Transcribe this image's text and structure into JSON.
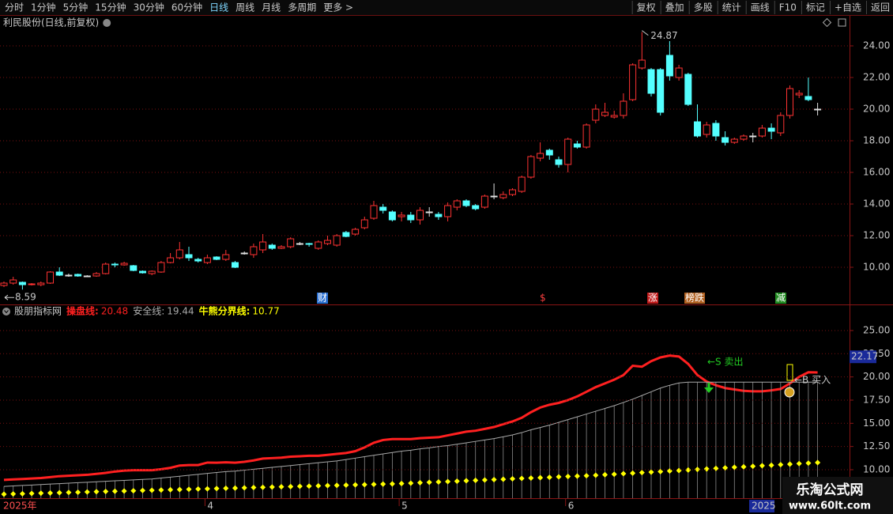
{
  "toolbar": {
    "left": [
      "分时",
      "1分钟",
      "5分钟",
      "15分钟",
      "30分钟",
      "60分钟",
      "日线",
      "周线",
      "月线",
      "多周期",
      "更多 >"
    ],
    "right": [
      "复权",
      "叠加",
      "多股",
      "统计",
      "画线",
      "F10",
      "标记",
      "+自选",
      "返回"
    ]
  },
  "chart_data": [
    {
      "type": "candlestick",
      "title": "利民股份(日线,前复权)",
      "categories": [
        "2025年",
        null,
        null,
        null,
        null,
        null,
        null,
        null,
        null,
        null,
        null,
        null,
        null,
        null,
        null,
        null,
        null,
        null,
        null,
        null,
        null,
        null,
        "4",
        null,
        null,
        null,
        null,
        null,
        null,
        null,
        null,
        null,
        null,
        null,
        null,
        null,
        null,
        null,
        null,
        null,
        null,
        null,
        null,
        "5",
        null,
        null,
        null,
        null,
        null,
        null,
        null,
        null,
        null,
        null,
        null,
        null,
        null,
        null,
        null,
        null,
        null,
        "6",
        null,
        null,
        null,
        null,
        null,
        null,
        null,
        null,
        null,
        null,
        null,
        null,
        null,
        null,
        null,
        null,
        null,
        null,
        null,
        null,
        null,
        null,
        null,
        null,
        null,
        null,
        null
      ],
      "open": [
        8.85,
        9.0,
        9.05,
        8.9,
        8.9,
        9.0,
        9.7,
        9.5,
        9.55,
        9.45,
        9.45,
        9.6,
        10.2,
        10.15,
        10.1,
        9.75,
        9.6,
        9.7,
        10.3,
        10.6,
        10.8,
        10.5,
        10.3,
        10.65,
        10.5,
        10.3,
        10.9,
        10.8,
        11.1,
        11.4,
        11.2,
        11.3,
        11.5,
        11.5,
        11.2,
        11.5,
        11.4,
        12.2,
        12.1,
        12.5,
        13.1,
        13.8,
        13.5,
        13.2,
        13.3,
        13.0,
        13.5,
        13.35,
        13.2,
        13.8,
        14.2,
        13.9,
        13.8,
        14.5,
        14.4,
        14.6,
        14.8,
        15.7,
        16.9,
        17.4,
        16.8,
        16.5,
        17.8,
        17.6,
        19.3,
        19.6,
        19.5,
        19.6,
        20.6,
        22.6,
        22.5,
        22.5,
        23.4,
        22.0,
        22.2,
        19.2,
        18.4,
        19.1,
        18.2,
        17.9,
        18.1,
        18.3,
        18.3,
        18.8,
        18.5,
        19.6,
        20.9,
        20.8,
        20.0
      ],
      "high": [
        9.1,
        9.4,
        9.1,
        9.0,
        9.1,
        9.75,
        10.0,
        9.6,
        9.6,
        9.5,
        9.7,
        10.3,
        10.3,
        10.35,
        10.15,
        9.8,
        9.8,
        10.4,
        10.9,
        11.6,
        11.3,
        10.6,
        10.8,
        10.7,
        11.1,
        10.4,
        11.0,
        11.5,
        12.1,
        11.5,
        11.4,
        11.9,
        11.6,
        11.55,
        11.7,
        12.0,
        12.1,
        12.3,
        12.5,
        13.2,
        14.2,
        14.0,
        13.6,
        13.5,
        13.5,
        13.8,
        13.8,
        13.5,
        14.1,
        14.3,
        14.3,
        14.0,
        14.6,
        15.3,
        14.8,
        15.0,
        15.8,
        17.1,
        17.9,
        17.5,
        17.0,
        18.2,
        18.0,
        19.1,
        20.3,
        20.4,
        19.9,
        21.0,
        22.9,
        24.87,
        22.6,
        22.6,
        24.3,
        22.8,
        22.3,
        20.3,
        19.2,
        19.3,
        18.6,
        18.2,
        18.4,
        18.5,
        19.0,
        19.1,
        19.8,
        21.5,
        21.2,
        22.0,
        20.4
      ],
      "low": [
        8.75,
        8.9,
        8.59,
        8.85,
        8.8,
        8.95,
        9.45,
        9.4,
        9.4,
        9.4,
        9.4,
        9.55,
        10.0,
        10.1,
        9.75,
        9.6,
        9.5,
        9.65,
        10.25,
        10.5,
        10.4,
        10.3,
        10.2,
        10.45,
        10.4,
        9.95,
        10.8,
        10.6,
        10.9,
        11.1,
        11.15,
        11.2,
        11.4,
        11.3,
        11.1,
        11.4,
        11.3,
        11.9,
        12.0,
        12.4,
        13.0,
        13.4,
        12.9,
        12.9,
        12.8,
        12.7,
        13.2,
        13.0,
        12.9,
        13.6,
        13.8,
        13.6,
        13.7,
        14.3,
        14.3,
        14.5,
        14.7,
        15.6,
        16.7,
        16.8,
        16.3,
        16.0,
        17.5,
        17.5,
        19.1,
        19.5,
        19.4,
        19.4,
        20.5,
        22.5,
        20.8,
        19.6,
        21.8,
        21.8,
        20.2,
        18.2,
        18.2,
        18.0,
        17.7,
        17.8,
        18.0,
        17.9,
        18.2,
        18.1,
        18.3,
        19.4,
        20.7,
        20.5,
        19.6
      ],
      "close": [
        9.0,
        9.2,
        8.9,
        8.95,
        9.0,
        9.7,
        9.5,
        9.5,
        9.45,
        9.45,
        9.6,
        10.2,
        10.15,
        10.25,
        9.8,
        9.65,
        9.75,
        10.3,
        10.6,
        11.1,
        10.6,
        10.4,
        10.6,
        10.5,
        10.8,
        10.0,
        10.9,
        11.3,
        11.6,
        11.2,
        11.3,
        11.8,
        11.5,
        11.45,
        11.6,
        11.7,
        12.0,
        11.95,
        12.4,
        13.0,
        13.9,
        13.6,
        13.0,
        13.3,
        13.0,
        13.6,
        13.5,
        13.2,
        13.9,
        14.2,
        13.9,
        13.7,
        14.5,
        14.5,
        14.6,
        14.9,
        15.7,
        17.0,
        17.2,
        17.1,
        16.5,
        18.1,
        17.6,
        19.0,
        20.0,
        19.8,
        19.6,
        20.5,
        22.8,
        23.1,
        21.0,
        19.8,
        22.1,
        22.6,
        20.3,
        18.3,
        19.0,
        18.3,
        17.9,
        18.1,
        18.3,
        18.3,
        18.8,
        18.6,
        19.6,
        21.3,
        21.0,
        20.6,
        20.0
      ],
      "up_color": "#ff3232",
      "down_color": "#54ffff",
      "flat_color": "#e0e0e0",
      "ylim": [
        7.65,
        25.8
      ],
      "yticks": [
        {
          "value": 10,
          "label": "10.00"
        },
        {
          "value": 12,
          "label": "12.00"
        },
        {
          "value": 14,
          "label": "14.00"
        },
        {
          "value": 16,
          "label": "16.00"
        },
        {
          "value": 18,
          "label": "18.00"
        },
        {
          "value": 20,
          "label": "20.00"
        },
        {
          "value": 22,
          "label": "22.00"
        },
        {
          "value": 24,
          "label": "24.00"
        }
      ],
      "grid": true,
      "annotations": {
        "high": 24.87,
        "low": 8.59
      },
      "events": [
        "财",
        "$",
        "涨",
        "榜跌",
        "减"
      ],
      "cursor_label": "2025"
    },
    {
      "type": "line",
      "title": "股朋指标网",
      "series": [
        {
          "name": "操盘线:",
          "color": "#ff2020",
          "values": [
            8.9,
            8.95,
            9.0,
            9.05,
            9.1,
            9.2,
            9.3,
            9.35,
            9.4,
            9.45,
            9.55,
            9.66,
            9.8,
            9.9,
            9.95,
            9.95,
            9.95,
            10.05,
            10.2,
            10.45,
            10.5,
            10.5,
            10.77,
            10.75,
            10.8,
            10.75,
            10.85,
            11.0,
            11.2,
            11.25,
            11.3,
            11.4,
            11.45,
            11.5,
            11.5,
            11.6,
            11.7,
            11.8,
            12.0,
            12.4,
            12.9,
            13.2,
            13.3,
            13.3,
            13.3,
            13.4,
            13.45,
            13.5,
            13.7,
            13.9,
            14.1,
            14.2,
            14.4,
            14.6,
            14.9,
            15.2,
            15.6,
            16.2,
            16.7,
            17.0,
            17.2,
            17.5,
            17.9,
            18.4,
            18.9,
            19.3,
            19.7,
            20.2,
            21.2,
            21.1,
            21.7,
            22.1,
            22.3,
            22.2,
            21.4,
            20.2,
            19.5,
            19.1,
            18.8,
            18.65,
            18.5,
            18.45,
            18.45,
            18.55,
            18.7,
            19.3,
            20.0,
            20.5,
            20.48
          ]
        },
        {
          "name": "安全线:",
          "color": "#a8a8a8",
          "values": [
            8.2,
            8.25,
            8.3,
            8.35,
            8.4,
            8.45,
            8.5,
            8.55,
            8.6,
            8.65,
            8.7,
            8.75,
            8.8,
            8.85,
            8.9,
            8.95,
            9.0,
            9.1,
            9.2,
            9.3,
            9.4,
            9.5,
            9.6,
            9.7,
            9.8,
            9.85,
            9.95,
            10.05,
            10.15,
            10.25,
            10.35,
            10.45,
            10.55,
            10.65,
            10.75,
            10.85,
            10.95,
            11.1,
            11.25,
            11.4,
            11.55,
            11.7,
            11.85,
            12.0,
            12.1,
            12.25,
            12.35,
            12.5,
            12.6,
            12.75,
            12.9,
            13.05,
            13.2,
            13.35,
            13.55,
            13.75,
            14.0,
            14.3,
            14.55,
            14.8,
            15.1,
            15.4,
            15.7,
            16.0,
            16.3,
            16.6,
            16.9,
            17.25,
            17.6,
            18.0,
            18.4,
            18.8,
            19.1,
            19.35,
            19.44,
            19.44,
            19.44,
            19.44,
            19.44,
            19.44,
            19.44,
            19.44,
            19.44,
            19.44,
            19.44,
            19.44,
            19.44,
            19.44,
            19.44
          ],
          "stems": true
        },
        {
          "name": "牛熊分界线:",
          "color": "#ffff00",
          "marker": "dot",
          "values": [
            7.36,
            7.39,
            7.41,
            7.44,
            7.47,
            7.49,
            7.52,
            7.55,
            7.57,
            7.6,
            7.63,
            7.65,
            7.68,
            7.7,
            7.73,
            7.76,
            7.78,
            7.81,
            7.84,
            7.86,
            7.89,
            7.92,
            7.94,
            7.97,
            8.0,
            8.02,
            8.05,
            8.08,
            8.1,
            8.13,
            8.16,
            8.18,
            8.21,
            8.23,
            8.26,
            8.29,
            8.31,
            8.34,
            8.37,
            8.39,
            8.42,
            8.45,
            8.47,
            8.51,
            8.55,
            8.6,
            8.64,
            8.68,
            8.72,
            8.76,
            8.81,
            8.85,
            8.89,
            8.93,
            8.97,
            9.02,
            9.06,
            9.1,
            9.14,
            9.18,
            9.23,
            9.27,
            9.31,
            9.35,
            9.4,
            9.46,
            9.51,
            9.57,
            9.63,
            9.69,
            9.74,
            9.8,
            9.86,
            9.91,
            9.97,
            10.03,
            10.08,
            10.14,
            10.2,
            10.26,
            10.31,
            10.37,
            10.43,
            10.48,
            10.54,
            10.6,
            10.66,
            10.71,
            10.77
          ]
        }
      ],
      "ylim": [
        6.93,
        27.64
      ],
      "yticks": [
        {
          "value": 10,
          "label": "10.00"
        },
        {
          "value": 12.5,
          "label": "12.50"
        },
        {
          "value": 15,
          "label": "15.00"
        },
        {
          "value": 17.5,
          "label": "17.50"
        },
        {
          "value": 20,
          "label": "20.00"
        },
        {
          "value": 22.5,
          "label": "22.50"
        },
        {
          "value": 25,
          "label": "25.00"
        }
      ],
      "grid": true,
      "annotations": [
        "←S 卖出",
        "←B 买入"
      ],
      "cursor_value": 22.17
    }
  ],
  "watermark": {
    "title": "乐淘公式网",
    "url": "www.60lt.com"
  }
}
